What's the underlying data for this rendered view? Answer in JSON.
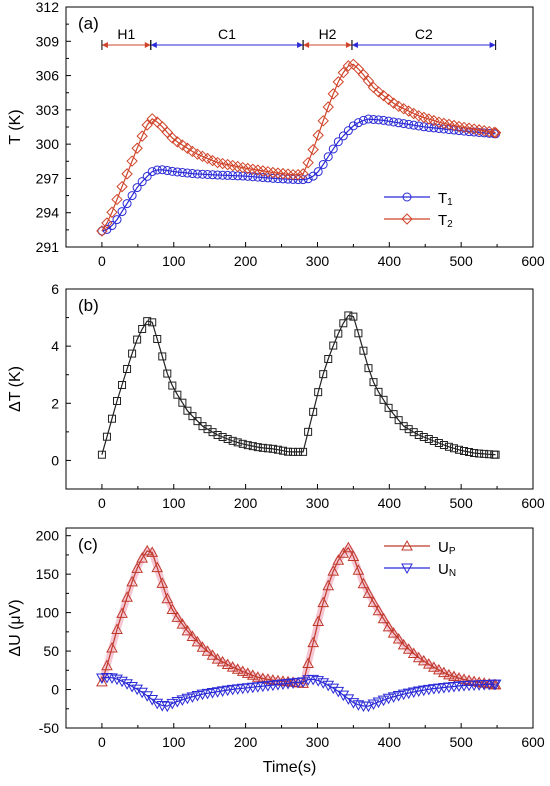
{
  "colors": {
    "t1": "#2a2ad6",
    "t2": "#d0442a",
    "dt": "#222222",
    "up": "#c0392b",
    "up_glow": "#f3b8c8",
    "un": "#2a2ad6",
    "phase_red": "#d0442a",
    "phase_blue": "#2a2ad6"
  },
  "chart_data": [
    {
      "type": "scatter",
      "panel_label": "(a)",
      "xlabel": "",
      "ylabel": "T (K)",
      "xlim": [
        -50,
        600
      ],
      "ylim": [
        291,
        312
      ],
      "xticks": [
        0,
        100,
        200,
        300,
        400,
        500,
        600
      ],
      "yticks": [
        291,
        294,
        297,
        300,
        303,
        306,
        309,
        312
      ],
      "grid": false,
      "legend": "bottom-right",
      "phases": [
        {
          "label": "H1",
          "start": 0,
          "end": 68,
          "color": "red"
        },
        {
          "label": "C1",
          "start": 68,
          "end": 280,
          "color": "blue"
        },
        {
          "label": "H2",
          "start": 280,
          "end": 348,
          "color": "red"
        },
        {
          "label": "C2",
          "start": 348,
          "end": 548,
          "color": "blue"
        }
      ],
      "series": [
        {
          "name": "T1",
          "name_main": "T",
          "name_sub": "1",
          "marker": "circle",
          "color_key": "t1",
          "x": [
            0,
            10,
            20,
            30,
            40,
            50,
            60,
            70,
            80,
            100,
            130,
            160,
            200,
            240,
            270,
            280,
            290,
            300,
            310,
            320,
            330,
            340,
            350,
            360,
            370,
            390,
            420,
            450,
            480,
            510,
            548
          ],
          "y": [
            292.4,
            292.6,
            293.3,
            294.3,
            295.3,
            296.3,
            297.0,
            297.6,
            297.8,
            297.6,
            297.4,
            297.3,
            297.2,
            297.0,
            296.9,
            296.9,
            297.0,
            297.5,
            298.4,
            299.4,
            300.3,
            301.0,
            301.6,
            302.0,
            302.2,
            302.1,
            301.8,
            301.5,
            301.3,
            301.1,
            300.9
          ]
        },
        {
          "name": "T2",
          "name_main": "T",
          "name_sub": "2",
          "marker": "diamond",
          "color_key": "t2",
          "x": [
            0,
            10,
            20,
            30,
            40,
            50,
            60,
            68,
            80,
            100,
            130,
            160,
            200,
            240,
            270,
            280,
            290,
            300,
            310,
            320,
            330,
            340,
            348,
            360,
            380,
            410,
            440,
            470,
            500,
            530,
            548
          ],
          "y": [
            292.4,
            293.4,
            295.0,
            296.6,
            298.2,
            299.8,
            301.3,
            302.3,
            301.8,
            300.4,
            299.2,
            298.4,
            297.9,
            297.5,
            297.3,
            297.4,
            298.8,
            300.6,
            302.4,
            304.1,
            305.6,
            306.7,
            307.1,
            306.4,
            304.8,
            303.4,
            302.5,
            301.9,
            301.5,
            301.2,
            301.0
          ]
        }
      ]
    },
    {
      "type": "scatter",
      "panel_label": "(b)",
      "xlabel": "",
      "ylabel": "ΔT (K)",
      "xlim": [
        -50,
        600
      ],
      "ylim": [
        -1,
        6
      ],
      "xticks": [
        0,
        100,
        200,
        300,
        400,
        500,
        600
      ],
      "yticks": [
        0,
        2,
        4,
        6
      ],
      "grid": false,
      "series": [
        {
          "name": "",
          "marker": "square",
          "color_key": "dt",
          "x": [
            0,
            10,
            20,
            30,
            40,
            50,
            60,
            68,
            80,
            90,
            100,
            120,
            140,
            160,
            180,
            200,
            220,
            240,
            260,
            280,
            290,
            300,
            310,
            320,
            330,
            340,
            348,
            360,
            370,
            380,
            400,
            420,
            440,
            460,
            480,
            500,
            520,
            548
          ],
          "y": [
            0.2,
            1.1,
            2.0,
            2.8,
            3.6,
            4.3,
            4.8,
            5.0,
            4.0,
            3.1,
            2.5,
            1.7,
            1.2,
            0.9,
            0.7,
            0.55,
            0.45,
            0.4,
            0.3,
            0.3,
            1.3,
            2.3,
            3.2,
            3.9,
            4.5,
            5.0,
            5.2,
            4.2,
            3.3,
            2.6,
            1.8,
            1.2,
            0.9,
            0.7,
            0.5,
            0.35,
            0.25,
            0.2
          ]
        }
      ]
    },
    {
      "type": "scatter",
      "panel_label": "(c)",
      "xlabel": "Time(s)",
      "ylabel": "ΔU (μV)",
      "xlim": [
        -50,
        600
      ],
      "ylim": [
        -50,
        210
      ],
      "xticks": [
        0,
        100,
        200,
        300,
        400,
        500,
        600
      ],
      "yticks": [
        -50,
        0,
        50,
        100,
        150,
        200
      ],
      "grid": false,
      "legend": "top-right",
      "series": [
        {
          "name": "UP",
          "name_main": "U",
          "name_sub": "P",
          "marker": "triangle-up",
          "color_key": "up",
          "x": [
            0,
            10,
            20,
            30,
            40,
            50,
            60,
            68,
            80,
            90,
            100,
            120,
            140,
            160,
            180,
            200,
            220,
            240,
            260,
            280,
            290,
            300,
            310,
            320,
            330,
            340,
            345,
            355,
            365,
            380,
            400,
            420,
            440,
            460,
            480,
            500,
            520,
            548
          ],
          "y": [
            10,
            40,
            75,
            105,
            135,
            160,
            178,
            184,
            150,
            120,
            100,
            75,
            55,
            40,
            30,
            22,
            15,
            12,
            10,
            8,
            45,
            85,
            120,
            150,
            170,
            182,
            186,
            160,
            135,
            110,
            80,
            58,
            42,
            30,
            20,
            14,
            10,
            6
          ]
        },
        {
          "name": "UN",
          "name_main": "U",
          "name_sub": "N",
          "marker": "triangle-down",
          "color_key": "un",
          "x": [
            0,
            10,
            20,
            30,
            40,
            50,
            60,
            70,
            80,
            90,
            100,
            120,
            140,
            160,
            180,
            200,
            220,
            240,
            260,
            280,
            290,
            300,
            310,
            320,
            330,
            340,
            350,
            360,
            370,
            380,
            400,
            420,
            440,
            460,
            480,
            500,
            520,
            548
          ],
          "y": [
            15,
            16,
            14,
            10,
            5,
            0,
            -6,
            -13,
            -20,
            -22,
            -17,
            -11,
            -6,
            -3,
            0,
            2,
            4,
            6,
            8,
            10,
            14,
            12,
            8,
            3,
            -3,
            -10,
            -17,
            -21,
            -22,
            -18,
            -11,
            -6,
            -2,
            1,
            3,
            5,
            6,
            7
          ]
        }
      ]
    }
  ]
}
